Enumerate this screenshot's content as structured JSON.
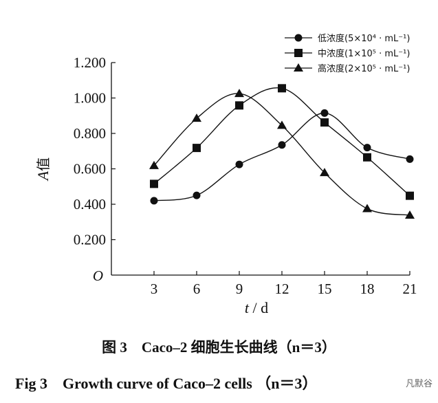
{
  "chart_data": {
    "type": "line",
    "x": [
      3,
      6,
      9,
      12,
      15,
      18,
      21
    ],
    "xticks": [
      "3",
      "6",
      "9",
      "12",
      "15",
      "18",
      "21"
    ],
    "yticks": [
      "1.200",
      "1.000",
      "0.800",
      "0.600",
      "0.400",
      "0.200"
    ],
    "origin_label": "O",
    "xlim": [
      0,
      21
    ],
    "ylim": [
      0,
      1.2
    ],
    "xlabel": "t / d",
    "xlabel_italic": "t",
    "xlabel_unit": " / d",
    "ylabel_italic": "A",
    "ylabel_suffix": "值",
    "legend_position": "top-right",
    "series": [
      {
        "name": "低浓度(5×10⁴ · mL⁻¹)",
        "marker": "circle",
        "values": [
          0.42,
          0.45,
          0.625,
          0.735,
          0.915,
          0.72,
          0.655
        ]
      },
      {
        "name": "中浓度(1×10⁵ · mL⁻¹)",
        "marker": "square",
        "values": [
          0.515,
          0.718,
          0.958,
          1.055,
          0.862,
          0.665,
          0.448
        ]
      },
      {
        "name": "高浓度(2×10⁵ · mL⁻¹)",
        "marker": "triangle",
        "values": [
          0.618,
          0.885,
          1.025,
          0.845,
          0.578,
          0.375,
          0.338
        ]
      }
    ]
  },
  "caption_cn": "图 3　Caco‒2 细胞生长曲线（n＝3）",
  "caption_en": "Fig 3　Growth curve of Caco‒2 cells （n＝3）",
  "watermark": "凡默谷"
}
